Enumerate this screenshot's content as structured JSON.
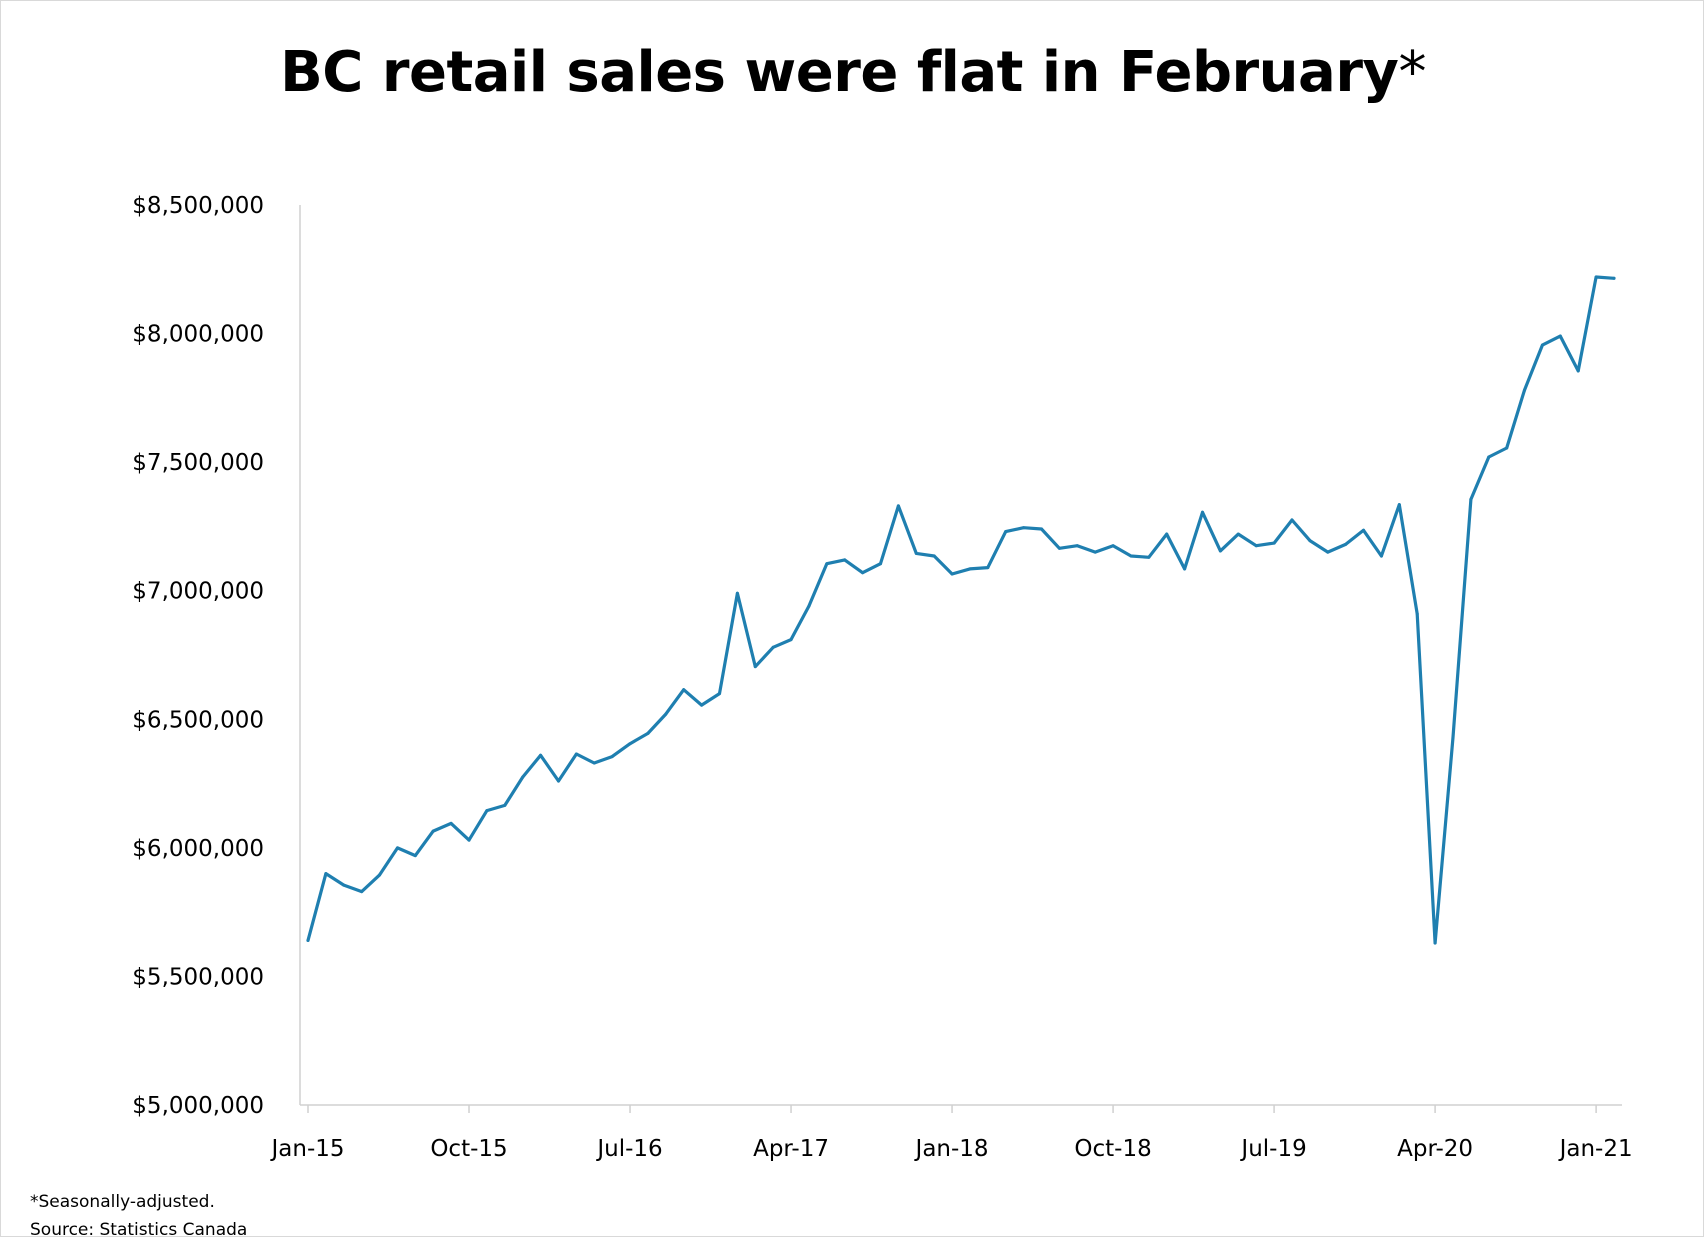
{
  "title": {
    "text": "BC retail sales were flat in February",
    "marker": "*"
  },
  "notes": {
    "line1": "*Seasonally-adjusted.",
    "line2": "Source: Statistics Canada"
  },
  "colors": {
    "line": "#1f7fb0",
    "axis": "#d0d0d0",
    "text": "#000000"
  },
  "chart_data": {
    "type": "line",
    "title": "BC retail sales were flat in February*",
    "xlabel": "",
    "ylabel": "",
    "ylim": [
      5000000,
      8500000
    ],
    "yticks": [
      "$5,000,000",
      "$5,500,000",
      "$6,000,000",
      "$6,500,000",
      "$7,000,000",
      "$7,500,000",
      "$8,000,000",
      "$8,500,000"
    ],
    "xticks": [
      "Jan-15",
      "Oct-15",
      "Jul-16",
      "Apr-17",
      "Jan-18",
      "Oct-18",
      "Jul-19",
      "Apr-20",
      "Jan-21"
    ],
    "x": [
      "Jan-15",
      "Feb-15",
      "Mar-15",
      "Apr-15",
      "May-15",
      "Jun-15",
      "Jul-15",
      "Aug-15",
      "Sep-15",
      "Oct-15",
      "Nov-15",
      "Dec-15",
      "Jan-16",
      "Feb-16",
      "Mar-16",
      "Apr-16",
      "May-16",
      "Jun-16",
      "Jul-16",
      "Aug-16",
      "Sep-16",
      "Oct-16",
      "Nov-16",
      "Dec-16",
      "Jan-17",
      "Feb-17",
      "Mar-17",
      "Apr-17",
      "May-17",
      "Jun-17",
      "Jul-17",
      "Aug-17",
      "Sep-17",
      "Oct-17",
      "Nov-17",
      "Dec-17",
      "Jan-18",
      "Feb-18",
      "Mar-18",
      "Apr-18",
      "May-18",
      "Jun-18",
      "Jul-18",
      "Aug-18",
      "Sep-18",
      "Oct-18",
      "Nov-18",
      "Dec-18",
      "Jan-19",
      "Feb-19",
      "Mar-19",
      "Apr-19",
      "May-19",
      "Jun-19",
      "Jul-19",
      "Aug-19",
      "Sep-19",
      "Oct-19",
      "Nov-19",
      "Dec-19",
      "Jan-20",
      "Feb-20",
      "Mar-20",
      "Apr-20",
      "May-20",
      "Jun-20",
      "Jul-20",
      "Aug-20",
      "Sep-20",
      "Oct-20",
      "Nov-20",
      "Dec-20",
      "Jan-21",
      "Feb-21"
    ],
    "series": [
      {
        "values": [
          5640000,
          5900000,
          5855000,
          5830000,
          5895000,
          6000000,
          5970000,
          6065000,
          6095000,
          6030000,
          6145000,
          6165000,
          6275000,
          6360000,
          6260000,
          6365000,
          6330000,
          6355000,
          6405000,
          6445000,
          6520000,
          6615000,
          6555000,
          6600000,
          6990000,
          6705000,
          6780000,
          6810000,
          6940000,
          7105000,
          7120000,
          7070000,
          7105000,
          7330000,
          7145000,
          7135000,
          7065000,
          7085000,
          7090000,
          7230000,
          7245000,
          7240000,
          7165000,
          7175000,
          7150000,
          7175000,
          7135000,
          7130000,
          7220000,
          7085000,
          7305000,
          7155000,
          7220000,
          7175000,
          7185000,
          7275000,
          7195000,
          7150000,
          7180000,
          7235000,
          7135000,
          7335000,
          6910000,
          5630000,
          6430000,
          7355000,
          7520000,
          7555000,
          7780000,
          7955000,
          7990000,
          7855000,
          8220000,
          8215000
        ]
      }
    ]
  }
}
